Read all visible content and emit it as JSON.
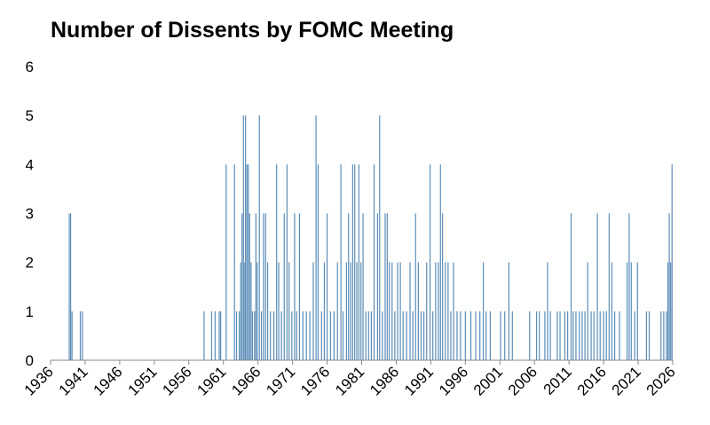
{
  "chart_data": {
    "type": "bar",
    "title": "Number of Dissents by FOMC Meeting",
    "color": "#5b8db8",
    "x": [
      1938.7,
      1938.9,
      1939.1,
      1940.3,
      1940.6,
      1958.2,
      1959.3,
      1959.8,
      1960.4,
      1960.6,
      1961.4,
      1962.6,
      1962.9,
      1963.3,
      1963.5,
      1963.7,
      1963.9,
      1964.1,
      1964.2,
      1964.4,
      1964.6,
      1964.8,
      1965.0,
      1965.2,
      1965.5,
      1965.7,
      1965.9,
      1966.2,
      1966.5,
      1966.8,
      1967.1,
      1967.4,
      1967.8,
      1968.3,
      1968.7,
      1969.0,
      1969.4,
      1969.8,
      1970.2,
      1970.5,
      1970.9,
      1971.3,
      1971.6,
      1972.0,
      1972.5,
      1973.0,
      1973.5,
      1974.0,
      1974.4,
      1974.7,
      1975.2,
      1975.6,
      1976.0,
      1976.5,
      1977.0,
      1977.5,
      1978.0,
      1978.3,
      1978.8,
      1979.1,
      1979.4,
      1979.7,
      1980.0,
      1980.3,
      1980.6,
      1980.9,
      1981.2,
      1981.6,
      1982.0,
      1982.4,
      1982.8,
      1983.3,
      1983.6,
      1984.0,
      1984.4,
      1984.7,
      1985.0,
      1985.4,
      1985.8,
      1986.2,
      1986.6,
      1987.0,
      1987.5,
      1988.0,
      1988.4,
      1988.8,
      1989.2,
      1989.6,
      1990.0,
      1990.4,
      1990.9,
      1991.3,
      1991.7,
      1992.1,
      1992.4,
      1992.7,
      1993.1,
      1993.5,
      1993.9,
      1994.3,
      1994.8,
      1995.3,
      1996.0,
      1996.8,
      1997.5,
      1998.1,
      1998.6,
      1999.0,
      1999.6,
      2001.1,
      2001.7,
      2002.3,
      2002.8,
      2005.3,
      2006.3,
      2006.7,
      2007.5,
      2007.9,
      2008.3,
      2009.3,
      2009.7,
      2010.4,
      2010.8,
      2011.3,
      2011.6,
      2012.0,
      2012.5,
      2012.9,
      2013.3,
      2013.7,
      2014.2,
      2014.6,
      2015.1,
      2015.5,
      2016.0,
      2016.4,
      2016.8,
      2017.2,
      2017.6,
      2018.3,
      2019.4,
      2019.7,
      2020.0,
      2020.5,
      2020.9,
      2022.2,
      2022.6,
      2024.3,
      2024.7,
      2025.1,
      2025.3,
      2025.5,
      2025.7,
      2025.9
    ],
    "values": [
      3,
      3,
      1,
      1,
      1,
      1,
      1,
      1,
      1,
      1,
      4,
      4,
      1,
      1,
      2,
      3,
      5,
      2,
      5,
      4,
      4,
      3,
      2,
      1,
      1,
      3,
      2,
      5,
      1,
      3,
      3,
      2,
      1,
      1,
      4,
      2,
      1,
      3,
      4,
      2,
      1,
      3,
      1,
      3,
      1,
      1,
      1,
      2,
      5,
      4,
      1,
      2,
      3,
      1,
      1,
      2,
      4,
      1,
      2,
      3,
      2,
      4,
      4,
      2,
      4,
      2,
      3,
      1,
      1,
      1,
      4,
      3,
      5,
      1,
      3,
      3,
      2,
      2,
      1,
      2,
      2,
      1,
      1,
      2,
      1,
      3,
      2,
      1,
      1,
      2,
      4,
      1,
      2,
      2,
      4,
      3,
      2,
      2,
      1,
      2,
      1,
      1,
      1,
      1,
      1,
      1,
      2,
      1,
      1,
      1,
      1,
      2,
      1,
      1,
      1,
      1,
      1,
      2,
      1,
      1,
      1,
      1,
      1,
      3,
      1,
      1,
      1,
      1,
      1,
      2,
      1,
      1,
      3,
      1,
      1,
      1,
      3,
      2,
      1,
      1,
      2,
      3,
      2,
      1,
      2,
      1,
      1,
      1,
      1,
      1,
      2,
      3,
      2,
      4
    ],
    "xlim": [
      1936,
      2026
    ],
    "xticks": [
      1936,
      1941,
      1946,
      1951,
      1956,
      1961,
      1966,
      1971,
      1976,
      1981,
      1986,
      1991,
      1996,
      2001,
      2006,
      2011,
      2016,
      2021,
      2026
    ],
    "ylim": [
      0,
      6
    ],
    "yticks": [
      0,
      1,
      2,
      3,
      4,
      5,
      6
    ],
    "grid": false
  }
}
